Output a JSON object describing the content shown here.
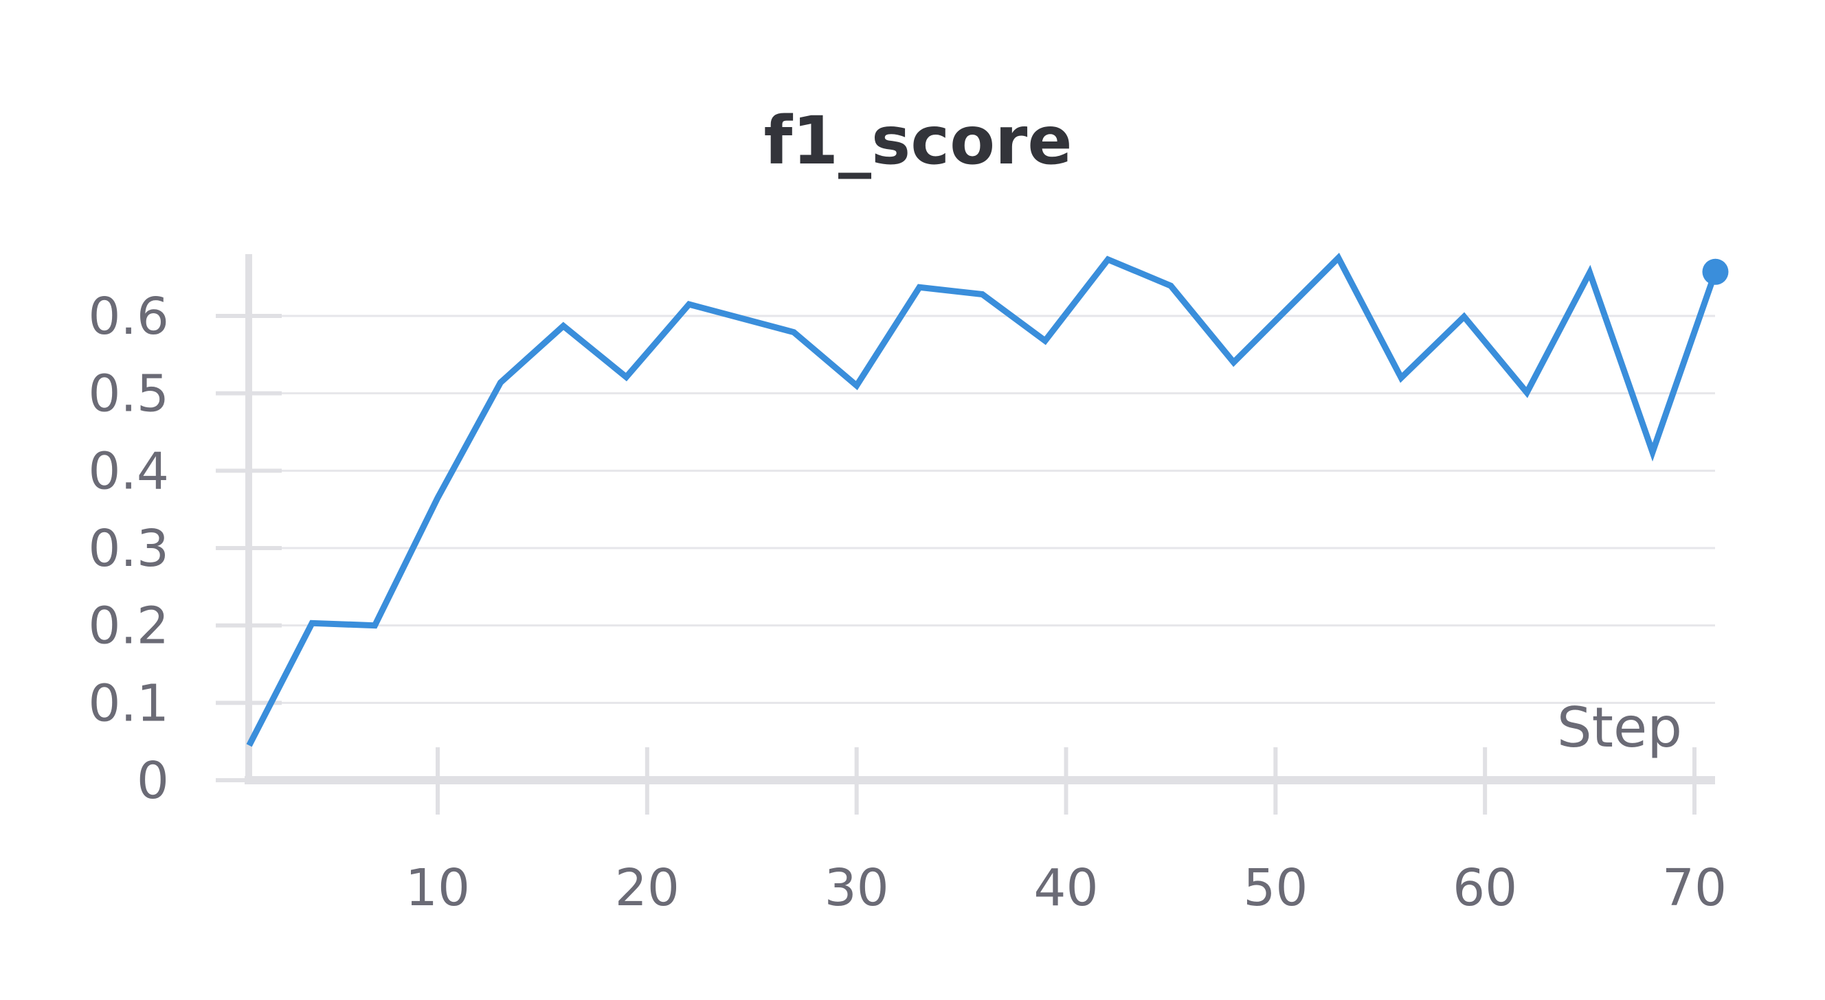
{
  "chart_data": {
    "type": "line",
    "title": "f1_score",
    "xlabel": "Step",
    "ylabel": "",
    "xlim": [
      1,
      72
    ],
    "ylim": [
      0,
      0.67
    ],
    "x_ticks": [
      10,
      20,
      30,
      40,
      50,
      60,
      70
    ],
    "y_ticks": [
      0,
      0.1,
      0.2,
      0.3,
      0.4,
      0.5,
      0.6
    ],
    "y_tick_labels": [
      "0",
      "0.1",
      "0.2",
      "0.3",
      "0.4",
      "0.5",
      "0.6"
    ],
    "x_tick_labels": [
      "10",
      "20",
      "30",
      "40",
      "50",
      "60",
      "70"
    ],
    "grid": true,
    "series": [
      {
        "color": "#3a8edb",
        "x": [
          1,
          4,
          7,
          10,
          13,
          16,
          19,
          22,
          27,
          30,
          33,
          36,
          39,
          42,
          45,
          48,
          53,
          56,
          59,
          62,
          65,
          68,
          71
        ],
        "y": [
          0.045,
          0.203,
          0.2,
          0.365,
          0.514,
          0.587,
          0.521,
          0.615,
          0.579,
          0.51,
          0.637,
          0.628,
          0.568,
          0.673,
          0.639,
          0.54,
          0.675,
          0.52,
          0.599,
          0.501,
          0.656,
          0.424,
          0.657
        ]
      }
    ]
  }
}
